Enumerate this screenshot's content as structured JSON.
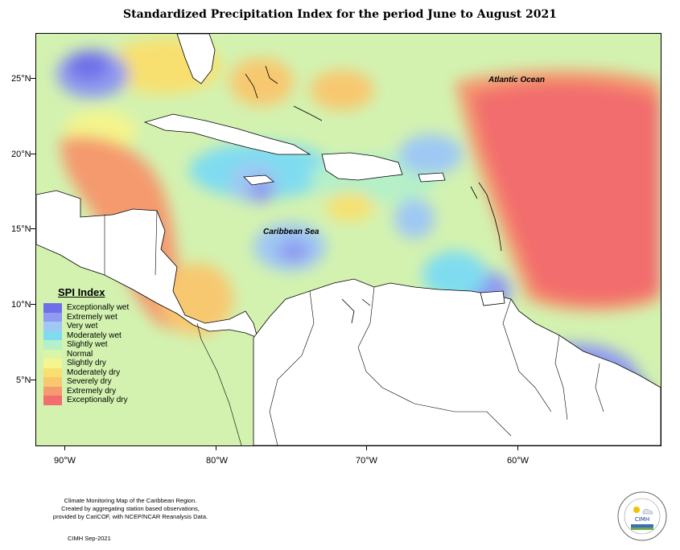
{
  "title": "Standardized Precipitation Index for the period June to August 2021",
  "map_labels": {
    "atlantic": "Atlantic Ocean",
    "caribbean": "Caribbean Sea"
  },
  "lat_labels": [
    "25°N",
    "20°N",
    "15°N",
    "10°N",
    "5°N"
  ],
  "lon_labels": [
    "90°W",
    "80°W",
    "70°W",
    "60°W"
  ],
  "legend": {
    "title": "SPI Index",
    "items": [
      {
        "label": "Exceptionally wet",
        "color": "#6f6fe8"
      },
      {
        "label": "Extremely wet",
        "color": "#8f9af0"
      },
      {
        "label": "Very wet",
        "color": "#9fc8f4"
      },
      {
        "label": "Moderately wet",
        "color": "#7fdcf0"
      },
      {
        "label": "Slightly wet",
        "color": "#b5f0c8"
      },
      {
        "label": "Normal",
        "color": "#d8f5a8"
      },
      {
        "label": "Slightly dry",
        "color": "#f4f58c"
      },
      {
        "label": "Moderately dry",
        "color": "#f8e070"
      },
      {
        "label": "Severely dry",
        "color": "#f8c870"
      },
      {
        "label": "Extremely dry",
        "color": "#f49a6e"
      },
      {
        "label": "Exceptionally dry",
        "color": "#f26d6d"
      }
    ]
  },
  "credits": {
    "line1": "Climate Monitoring Map of the Caribbean Region.",
    "line2": "Created by aggregating station based observations,",
    "line3": "provided by CariCOF, with NCEP/NCAR Reanalysis Data.",
    "date": "CIMH Sep-2021"
  },
  "logo": {
    "text": "CIMH",
    "ring_top": "Caribbean Institute for",
    "ring_bottom": "Meteorology and Hydrology"
  }
}
